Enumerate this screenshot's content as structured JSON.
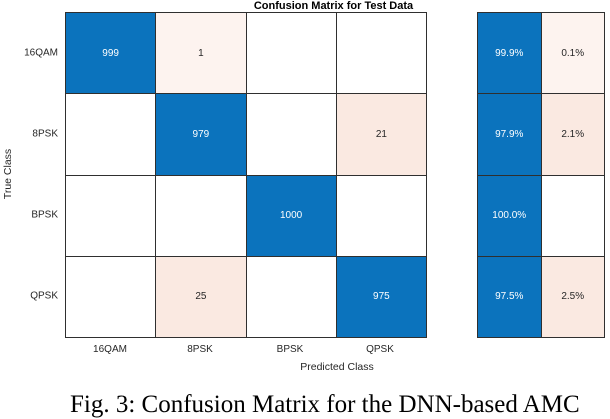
{
  "title": "Confusion Matrix for Test Data",
  "axes": {
    "x_label": "Predicted Class",
    "y_label": "True Class"
  },
  "classes": [
    "16QAM",
    "8PSK",
    "BPSK",
    "QPSK"
  ],
  "colors": {
    "diagonal_blue": "#0b73bd",
    "off_diag_light": "#fdf3ef",
    "off_diag_mid": "#fae9e1",
    "grid_line": "#2f2f2f",
    "text_dark": "#262626"
  },
  "matrix": {
    "rows": [
      [
        {
          "v": "999",
          "c": "blue"
        },
        {
          "v": "1",
          "c": "pink1"
        },
        {
          "v": "",
          "c": "white"
        },
        {
          "v": "",
          "c": "white"
        }
      ],
      [
        {
          "v": "",
          "c": "white"
        },
        {
          "v": "979",
          "c": "blue"
        },
        {
          "v": "",
          "c": "white"
        },
        {
          "v": "21",
          "c": "pink2"
        }
      ],
      [
        {
          "v": "",
          "c": "white"
        },
        {
          "v": "",
          "c": "white"
        },
        {
          "v": "1000",
          "c": "blue"
        },
        {
          "v": "",
          "c": "white"
        }
      ],
      [
        {
          "v": "",
          "c": "white"
        },
        {
          "v": "25",
          "c": "pink2"
        },
        {
          "v": "",
          "c": "white"
        },
        {
          "v": "975",
          "c": "blue"
        }
      ]
    ]
  },
  "row_summary": {
    "rows": [
      [
        {
          "v": "99.9%",
          "c": "blue"
        },
        {
          "v": "0.1%",
          "c": "pink1"
        }
      ],
      [
        {
          "v": "97.9%",
          "c": "blue"
        },
        {
          "v": "2.1%",
          "c": "pink2"
        }
      ],
      [
        {
          "v": "100.0%",
          "c": "blue"
        },
        {
          "v": "",
          "c": "white"
        }
      ],
      [
        {
          "v": "97.5%",
          "c": "blue"
        },
        {
          "v": "2.5%",
          "c": "pink2"
        }
      ]
    ]
  },
  "caption": "Fig. 3: Confusion Matrix for the DNN-based AMC",
  "chart_data": {
    "type": "heatmap",
    "title": "Confusion Matrix for Test Data",
    "xlabel": "Predicted Class",
    "ylabel": "True Class",
    "classes": [
      "16QAM",
      "8PSK",
      "BPSK",
      "QPSK"
    ],
    "counts": [
      [
        999,
        1,
        0,
        0
      ],
      [
        0,
        979,
        0,
        21
      ],
      [
        0,
        0,
        1000,
        0
      ],
      [
        0,
        25,
        0,
        975
      ]
    ],
    "row_summary_pct": [
      [
        99.9,
        0.1
      ],
      [
        97.9,
        2.1
      ],
      [
        100.0,
        0.0
      ],
      [
        97.5,
        2.5
      ]
    ],
    "legend_position": "none",
    "grid": true
  }
}
